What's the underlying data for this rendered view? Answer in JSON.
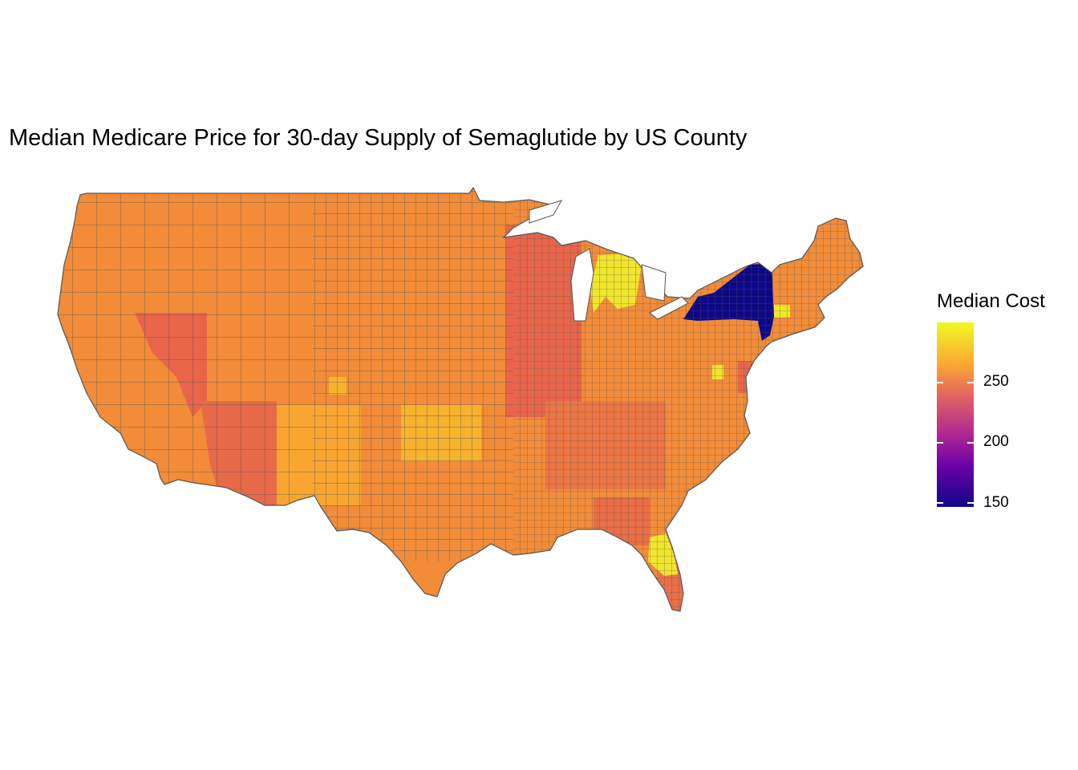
{
  "title": "Median Medicare Price for 30-day Supply of Semaglutide by US County",
  "legend": {
    "title": "Median Cost",
    "ticks": [
      {
        "value": 250,
        "label": "250"
      },
      {
        "value": 200,
        "label": "200"
      },
      {
        "value": 150,
        "label": "150"
      }
    ],
    "range": [
      147,
      298
    ],
    "colormap": [
      "#0d0887",
      "#6a00a8",
      "#b12a90",
      "#e16462",
      "#fca636",
      "#f0f921"
    ]
  },
  "map_colors": {
    "typical": "#f28c38",
    "low_new_york": "#0d0887",
    "high": "#f0e62b",
    "reddish": "#e8654a",
    "border": "#555555"
  },
  "regions": [
    {
      "name": "New York",
      "level": "low"
    },
    {
      "name": "Michigan Lower Peninsula",
      "level": "high"
    },
    {
      "name": "Central Florida",
      "level": "high"
    },
    {
      "name": "Connecticut",
      "level": "high"
    },
    {
      "name": "Oklahoma",
      "level": "high"
    },
    {
      "name": "Wisconsin / Illinois",
      "level": "reddish"
    },
    {
      "name": "Nevada",
      "level": "reddish"
    },
    {
      "name": "Arizona",
      "level": "reddish"
    }
  ]
}
